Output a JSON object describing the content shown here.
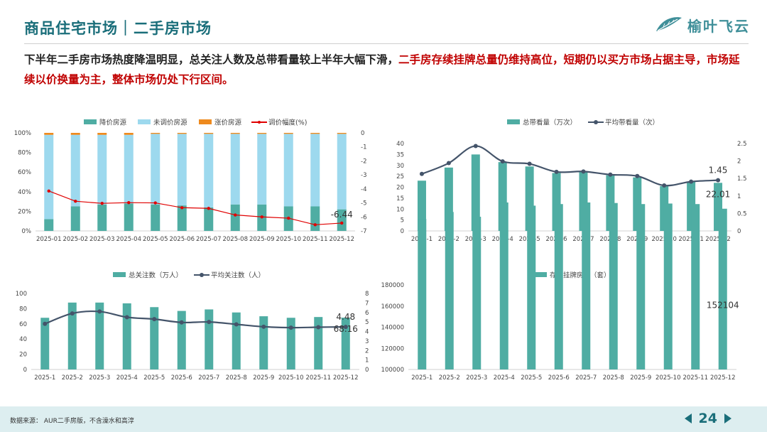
{
  "header": {
    "title": "商品住宅市场｜二手房市场",
    "logo_text": "榆叶飞云"
  },
  "summary": {
    "part1": "下半年二手房市场热度降温明显，总关注人数及总带看量较上半年大幅下滑，",
    "part2": "二手房存续挂牌总量仍维持高位，短期仍以买方市场占据主导，市场延续以价换量为主，整体市场仍处下行区间。"
  },
  "footer": {
    "source": "数据来源： AUR二手房版，不含澡水和高淳",
    "page": "24"
  },
  "colors": {
    "teal": "#4fada3",
    "lightblue": "#9dd9ee",
    "orange": "#ee8a1e",
    "red": "#e00000",
    "navy": "#44546a",
    "accent": "#1a6e7a"
  },
  "chart_data": [
    {
      "type": "bar",
      "stacked": true,
      "categories": [
        "2025-01",
        "2025-02",
        "2025-03",
        "2025-04",
        "2025-05",
        "2025-06",
        "2025-07",
        "2025-08",
        "2025-09",
        "2025-10",
        "2025-11",
        "2025-12"
      ],
      "series": [
        {
          "name": "降价房源",
          "values": [
            12,
            25,
            27,
            28,
            27,
            26,
            24,
            27,
            27,
            25,
            25,
            22
          ]
        },
        {
          "name": "未调价房源",
          "values": [
            86,
            73,
            71,
            70,
            72,
            73,
            75,
            72,
            72,
            74,
            74,
            77
          ]
        },
        {
          "name": "涨价房源",
          "values": [
            2,
            2,
            2,
            2,
            1,
            1,
            1,
            1,
            1,
            1,
            1,
            1
          ]
        }
      ],
      "line": {
        "name": "调价幅度(%)",
        "values": [
          -4.15,
          -4.88,
          -5.03,
          -4.98,
          -5.0,
          -5.34,
          -5.39,
          -5.86,
          -6.0,
          -6.09,
          -6.56,
          -6.44
        ]
      },
      "ylim": [
        0,
        100
      ],
      "y2lim": [
        -7,
        0
      ],
      "yticks": [
        "0%",
        "20%",
        "40%",
        "60%",
        "80%",
        "100%"
      ],
      "y2ticks": [
        "-7",
        "-6",
        "-5",
        "-4",
        "-3",
        "-2",
        "-1",
        "0"
      ],
      "annotation": "-6.44",
      "legend": "top"
    },
    {
      "type": "bar",
      "categories": [
        "2025-1",
        "2025-2",
        "2025-3",
        "2025-4",
        "2025-5",
        "2025-6",
        "2025-7",
        "2025-8",
        "2025-9",
        "2025-10",
        "2025-11",
        "2025-12"
      ],
      "series": [
        {
          "name": "总带看量（万次）",
          "values": [
            23,
            29,
            35,
            31.5,
            29.5,
            26.5,
            27,
            25.5,
            24.5,
            20.5,
            22.5,
            22.01
          ]
        }
      ],
      "line": {
        "name": "平均带看量（次）",
        "values": [
          1.63,
          1.94,
          2.43,
          1.99,
          1.92,
          1.69,
          1.7,
          1.61,
          1.57,
          1.3,
          1.41,
          1.45
        ]
      },
      "ylim": [
        0,
        40
      ],
      "y2lim": [
        0,
        2.5
      ],
      "yticks": [
        "0",
        "5",
        "10",
        "15",
        "20",
        "25",
        "30",
        "35",
        "40"
      ],
      "y2ticks": [
        "0",
        "0.5",
        "1",
        "1.5",
        "2",
        "2.5"
      ],
      "annotation_line": "1.45",
      "annotation_bar": "22.01",
      "legend": "top"
    },
    {
      "type": "bar",
      "categories": [
        "2025-1",
        "2025-2",
        "2025-3",
        "2025-4",
        "2025-5",
        "2025-6",
        "2025-7",
        "2025-8",
        "2025-9",
        "2025-10",
        "2025-11",
        "2025-12"
      ],
      "series": [
        {
          "name": "总关注数（万人）",
          "values": [
            68,
            88,
            88,
            87,
            82,
            77,
            79,
            75,
            70,
            68,
            69,
            68.16
          ]
        }
      ],
      "line": {
        "name": "平均关注数（人）",
        "values": [
          4.8,
          5.9,
          6.1,
          5.5,
          5.3,
          4.95,
          5.0,
          4.75,
          4.5,
          4.4,
          4.45,
          4.48
        ]
      },
      "ylim": [
        0,
        100
      ],
      "y2lim": [
        0,
        8
      ],
      "yticks": [
        "0",
        "20",
        "40",
        "60",
        "80",
        "100"
      ],
      "y2ticks": [
        "0",
        "1",
        "2",
        "3",
        "4",
        "5",
        "6",
        "7",
        "8"
      ],
      "annotation_line": "4.48",
      "annotation_bar": "68.16",
      "legend": "top"
    },
    {
      "type": "bar",
      "categories": [
        "2025-1",
        "2025-2",
        "2025-3",
        "2025-4",
        "2025-5",
        "2025-6",
        "2025-7",
        "2025-8",
        "2025-9",
        "2025-10",
        "2025-11",
        "2025-12"
      ],
      "series": [
        {
          "name": "存续挂牌房源（套）",
          "values": [
            142500,
            149000,
            144500,
            158000,
            155000,
            156500,
            158000,
            157500,
            156500,
            157000,
            156500,
            152104
          ]
        }
      ],
      "ylim": [
        100000,
        180000
      ],
      "yticks": [
        "100000",
        "120000",
        "140000",
        "160000",
        "180000"
      ],
      "annotation_bar": "152104",
      "legend": "top"
    }
  ]
}
